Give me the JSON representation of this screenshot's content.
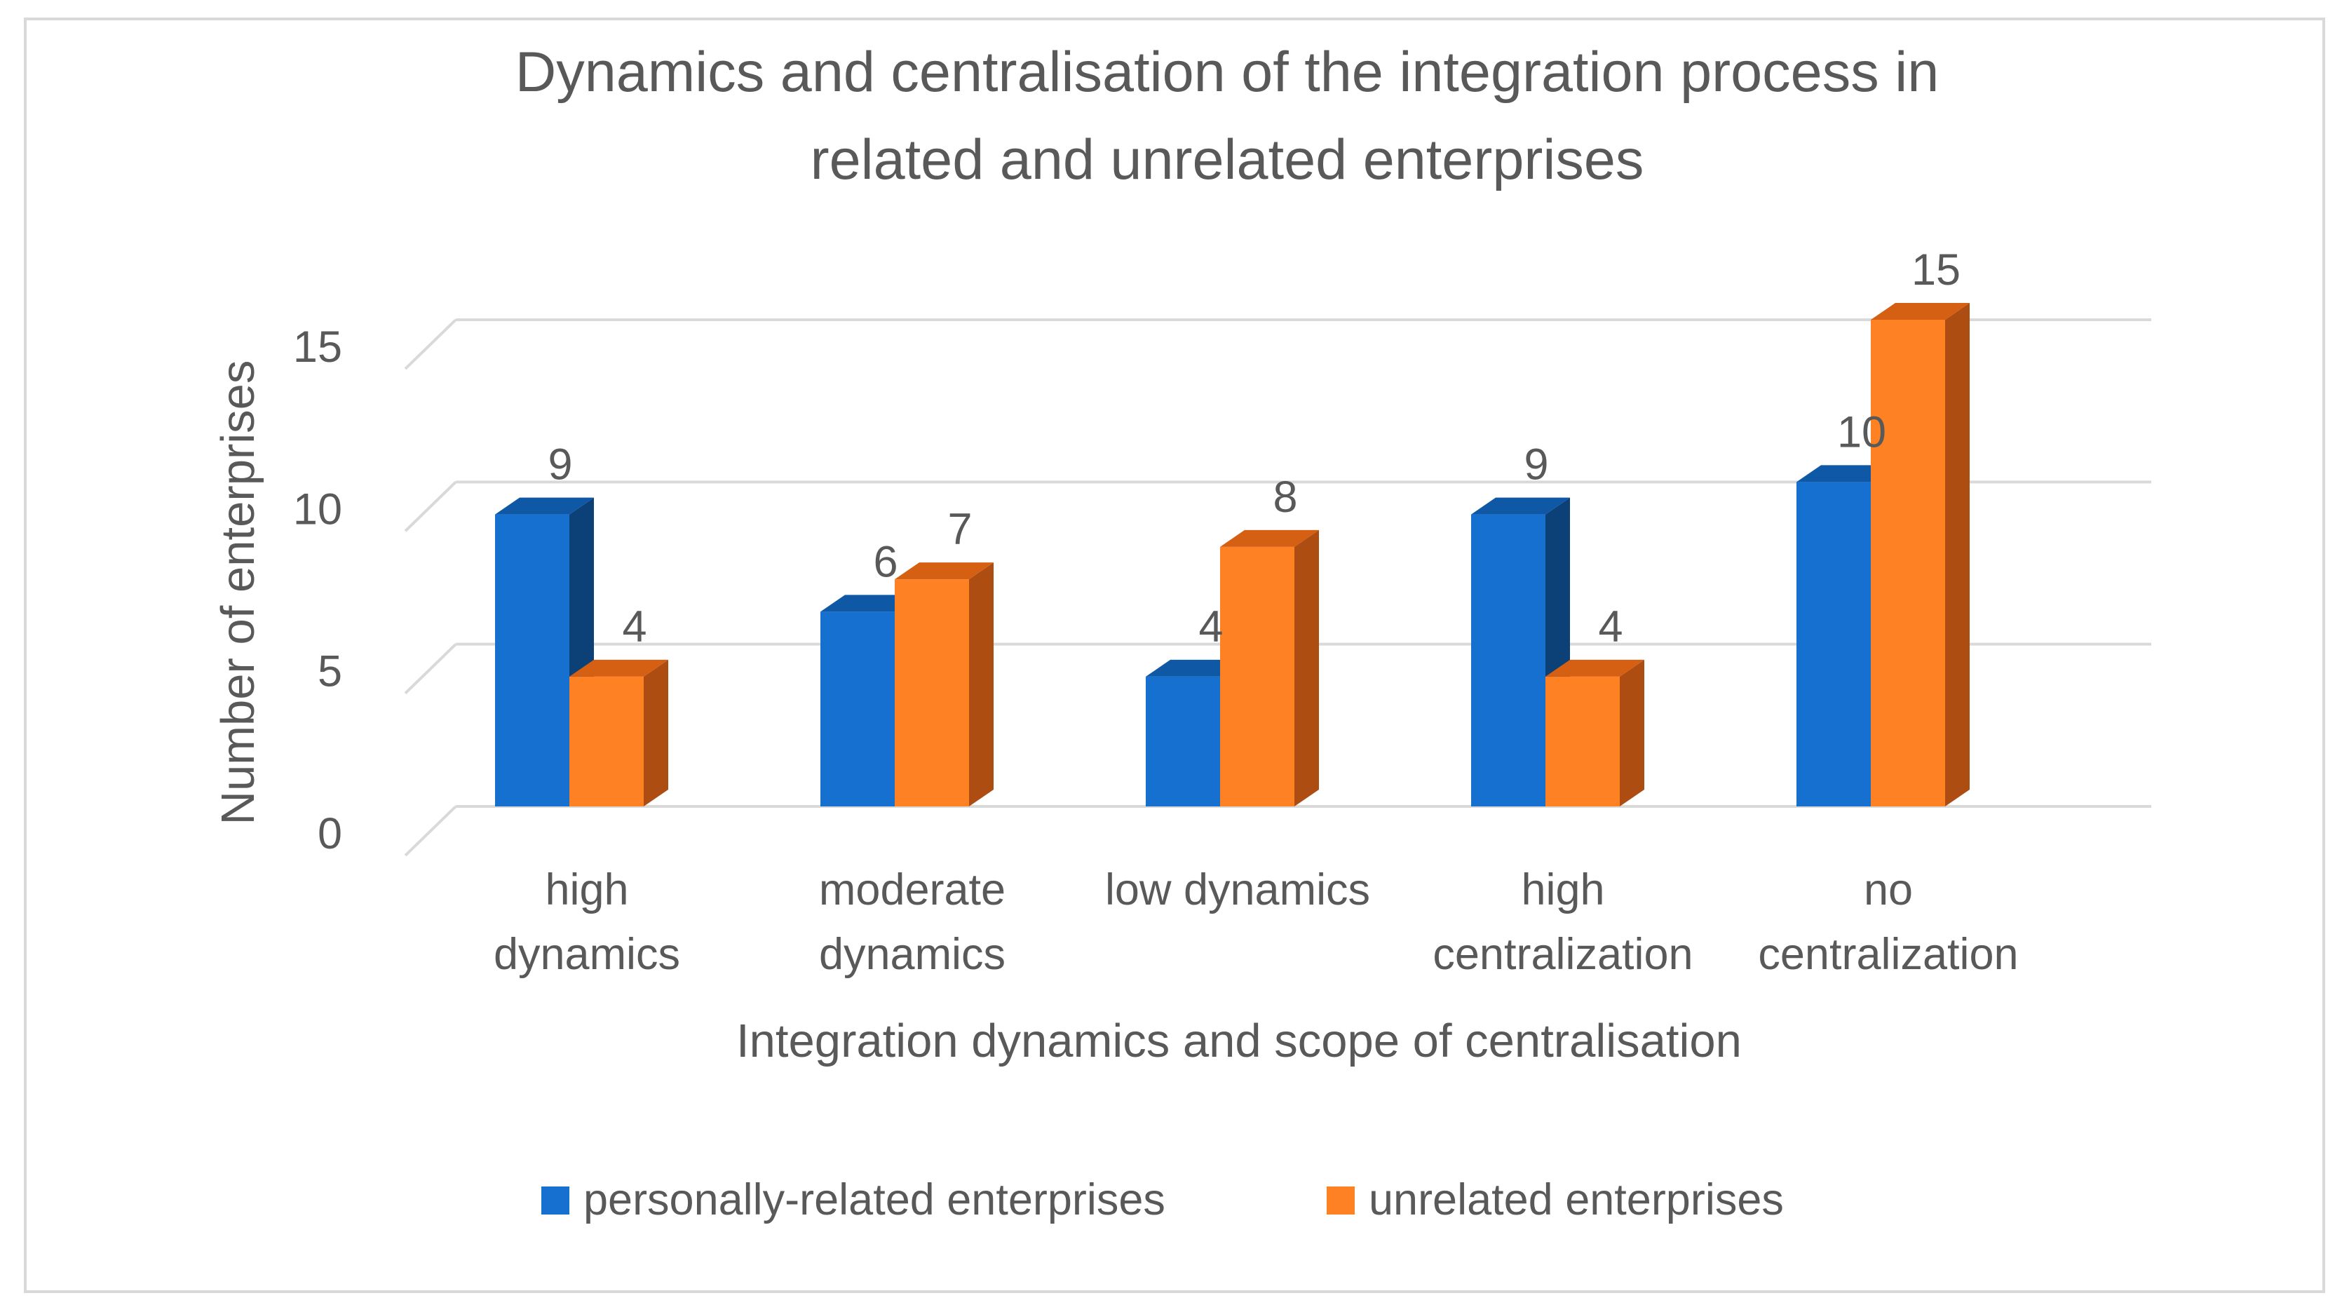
{
  "chart_data": {
    "type": "bar",
    "title_lines": [
      "Dynamics and centralisation of the integration process in",
      "related and unrelated enterprises"
    ],
    "xlabel": "Integration dynamics and scope of centralisation",
    "ylabel": "Number of enterprises",
    "ylim": [
      0,
      15
    ],
    "yticks": [
      "0",
      "5",
      "10",
      "15"
    ],
    "ytick_values": [
      0,
      5,
      10,
      15
    ],
    "grid": true,
    "legend_position": "bottom",
    "categories": [
      [
        "high",
        "dynamics"
      ],
      [
        "moderate",
        "dynamics"
      ],
      [
        "low dynamics"
      ],
      [
        "high",
        "centralization"
      ],
      [
        "no",
        "centralization"
      ]
    ],
    "series": [
      {
        "name": "personally-related enterprises",
        "values": [
          9,
          6,
          4,
          9,
          10
        ],
        "color": "#1570cf",
        "top_color": "#0f58a6",
        "side_color": "#0b4177"
      },
      {
        "name": "unrelated enterprises",
        "values": [
          4,
          7,
          8,
          4,
          15
        ],
        "color": "#fe8224",
        "top_color": "#d55f12",
        "side_color": "#ae4d12"
      }
    ]
  }
}
